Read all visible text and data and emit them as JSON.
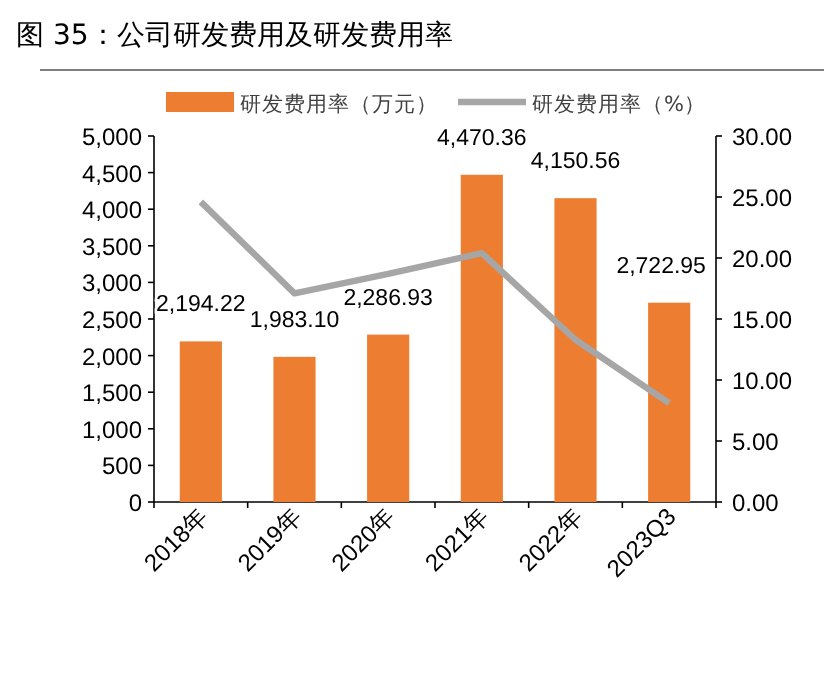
{
  "chart_data": {
    "type": "bar",
    "title": "图 35：公司研发费用及研发费用率",
    "categories": [
      "2018年",
      "2019年",
      "2020年",
      "2021年",
      "2022年",
      "2023Q3"
    ],
    "series": [
      {
        "name": "研发费用率（万元）",
        "color": "#ed7d31",
        "values": [
          2194.22,
          1983.1,
          2286.93,
          4470.36,
          4150.56,
          2722.95
        ],
        "value_labels": [
          "2,194.22",
          "1,983.10",
          "2,286.93",
          "4,470.36",
          "4,150.56",
          "2,722.95"
        ]
      },
      {
        "name": "研发费用率（%）",
        "type": "line",
        "axis": "y2",
        "color": "#a6a6a6",
        "values": [
          24.6,
          17.1,
          18.7,
          20.4,
          13.3,
          8.1
        ]
      }
    ],
    "ylim": [
      0,
      5000
    ],
    "yticks": [
      {
        "value": 0,
        "label": "0"
      },
      {
        "value": 500,
        "label": "500"
      },
      {
        "value": 1000,
        "label": "1,000"
      },
      {
        "value": 1500,
        "label": "1,500"
      },
      {
        "value": 2000,
        "label": "2,000"
      },
      {
        "value": 2500,
        "label": "2,500"
      },
      {
        "value": 3000,
        "label": "3,000"
      },
      {
        "value": 3500,
        "label": "3,500"
      },
      {
        "value": 4000,
        "label": "4,000"
      },
      {
        "value": 4500,
        "label": "4,500"
      },
      {
        "value": 5000,
        "label": "5,000"
      }
    ],
    "y2lim": [
      0,
      30
    ],
    "y2ticks": [
      {
        "value": 0,
        "label": "0.00"
      },
      {
        "value": 5,
        "label": "5.00"
      },
      {
        "value": 10,
        "label": "10.00"
      },
      {
        "value": 15,
        "label": "15.00"
      },
      {
        "value": 20,
        "label": "20.00"
      },
      {
        "value": 25,
        "label": "25.00"
      },
      {
        "value": 30,
        "label": "30.00"
      }
    ],
    "legend": "top",
    "grid": false,
    "marker": "none",
    "line_style": "solid"
  }
}
